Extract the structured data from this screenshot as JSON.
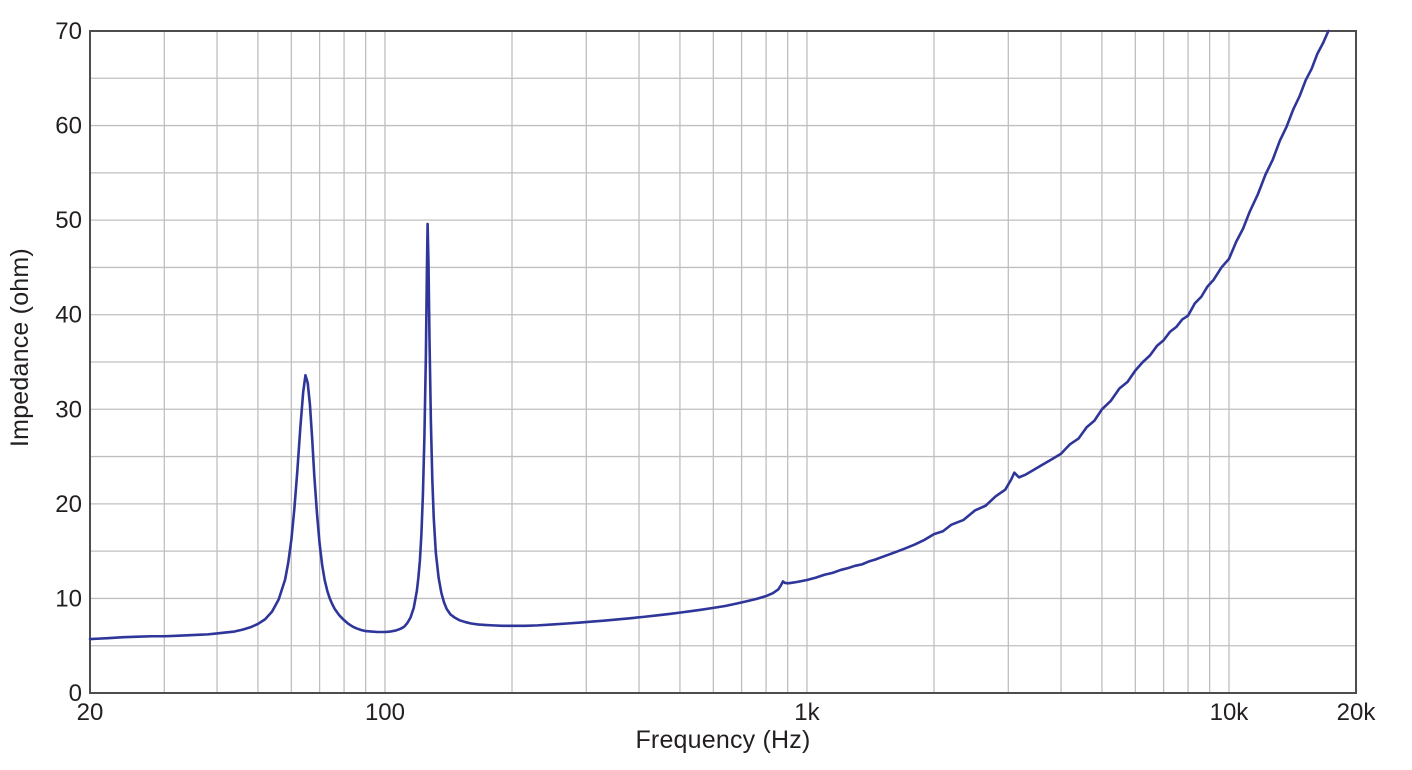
{
  "page": {
    "background": "#ffffff"
  },
  "chart_data": {
    "type": "line",
    "title": "",
    "xlabel": "Frequency (Hz)",
    "ylabel": "Impedance (ohm)",
    "x_scale": "log",
    "xlim": [
      20,
      20000
    ],
    "ylim": [
      0,
      70
    ],
    "grid": true,
    "legend_position": "none",
    "y_major_ticks": [
      0,
      10,
      20,
      30,
      40,
      50,
      60,
      70
    ],
    "y_gridline_step": 5,
    "x_tick_labels": [
      {
        "value": 20,
        "label": "20"
      },
      {
        "value": 100,
        "label": "100"
      },
      {
        "value": 1000,
        "label": "1k"
      },
      {
        "value": 10000,
        "label": "10k"
      },
      {
        "value": 20000,
        "label": "20k"
      }
    ],
    "colors": {
      "curve": "#2f3699",
      "gridline": "#bfbfbf",
      "border": "#4d4d4d",
      "text": "#231f20"
    },
    "series": [
      {
        "name": "Impedance",
        "color": "#2f3699",
        "points": [
          [
            20,
            5.7
          ],
          [
            21,
            5.75
          ],
          [
            22,
            5.8
          ],
          [
            23,
            5.85
          ],
          [
            24,
            5.9
          ],
          [
            26,
            5.95
          ],
          [
            28,
            6.0
          ],
          [
            30,
            6.0
          ],
          [
            32,
            6.05
          ],
          [
            34,
            6.1
          ],
          [
            36,
            6.15
          ],
          [
            38,
            6.2
          ],
          [
            40,
            6.3
          ],
          [
            42,
            6.4
          ],
          [
            44,
            6.5
          ],
          [
            46,
            6.7
          ],
          [
            48,
            6.95
          ],
          [
            50,
            7.3
          ],
          [
            52,
            7.8
          ],
          [
            54,
            8.6
          ],
          [
            56,
            9.9
          ],
          [
            58,
            12.0
          ],
          [
            59,
            13.8
          ],
          [
            60,
            16.2
          ],
          [
            61,
            19.5
          ],
          [
            62,
            23.5
          ],
          [
            63,
            28.0
          ],
          [
            64,
            31.8
          ],
          [
            64.8,
            33.6
          ],
          [
            65.6,
            32.8
          ],
          [
            66.4,
            30.5
          ],
          [
            67.2,
            27.0
          ],
          [
            68,
            23.0
          ],
          [
            69,
            19.0
          ],
          [
            70,
            15.8
          ],
          [
            71,
            13.5
          ],
          [
            72,
            11.9
          ],
          [
            73,
            10.8
          ],
          [
            74,
            10.0
          ],
          [
            75,
            9.4
          ],
          [
            76,
            8.9
          ],
          [
            78,
            8.2
          ],
          [
            80,
            7.7
          ],
          [
            82,
            7.3
          ],
          [
            84,
            7.0
          ],
          [
            86,
            6.8
          ],
          [
            88,
            6.65
          ],
          [
            90,
            6.55
          ],
          [
            93,
            6.5
          ],
          [
            96,
            6.45
          ],
          [
            100,
            6.45
          ],
          [
            103,
            6.5
          ],
          [
            106,
            6.6
          ],
          [
            109,
            6.8
          ],
          [
            111,
            7.0
          ],
          [
            113,
            7.4
          ],
          [
            115,
            8.0
          ],
          [
            117,
            9.0
          ],
          [
            119,
            10.8
          ],
          [
            120,
            12.2
          ],
          [
            121,
            14.0
          ],
          [
            122,
            16.8
          ],
          [
            123,
            21.0
          ],
          [
            124,
            27.0
          ],
          [
            125,
            35.5
          ],
          [
            125.7,
            44.5
          ],
          [
            126.2,
            49.6
          ],
          [
            126.8,
            45.5
          ],
          [
            127.5,
            37.5
          ],
          [
            128.5,
            28.5
          ],
          [
            129.5,
            22.5
          ],
          [
            130.5,
            18.5
          ],
          [
            132,
            14.8
          ],
          [
            134,
            12.2
          ],
          [
            136,
            10.6
          ],
          [
            138,
            9.6
          ],
          [
            140,
            8.9
          ],
          [
            143,
            8.3
          ],
          [
            146,
            8.0
          ],
          [
            150,
            7.7
          ],
          [
            155,
            7.5
          ],
          [
            160,
            7.35
          ],
          [
            166,
            7.25
          ],
          [
            172,
            7.2
          ],
          [
            180,
            7.15
          ],
          [
            190,
            7.1
          ],
          [
            200,
            7.1
          ],
          [
            215,
            7.1
          ],
          [
            230,
            7.15
          ],
          [
            250,
            7.25
          ],
          [
            270,
            7.35
          ],
          [
            290,
            7.45
          ],
          [
            310,
            7.55
          ],
          [
            330,
            7.65
          ],
          [
            350,
            7.75
          ],
          [
            380,
            7.9
          ],
          [
            410,
            8.05
          ],
          [
            440,
            8.2
          ],
          [
            470,
            8.35
          ],
          [
            500,
            8.5
          ],
          [
            530,
            8.65
          ],
          [
            560,
            8.8
          ],
          [
            600,
            9.0
          ],
          [
            640,
            9.2
          ],
          [
            680,
            9.45
          ],
          [
            720,
            9.7
          ],
          [
            760,
            9.95
          ],
          [
            800,
            10.25
          ],
          [
            830,
            10.55
          ],
          [
            855,
            10.95
          ],
          [
            868,
            11.4
          ],
          [
            877,
            11.8
          ],
          [
            886,
            11.65
          ],
          [
            900,
            11.6
          ],
          [
            920,
            11.65
          ],
          [
            950,
            11.75
          ],
          [
            1000,
            11.95
          ],
          [
            1050,
            12.2
          ],
          [
            1100,
            12.5
          ],
          [
            1150,
            12.7
          ],
          [
            1200,
            13.0
          ],
          [
            1250,
            13.2
          ],
          [
            1300,
            13.45
          ],
          [
            1350,
            13.6
          ],
          [
            1400,
            13.9
          ],
          [
            1450,
            14.1
          ],
          [
            1500,
            14.35
          ],
          [
            1600,
            14.8
          ],
          [
            1700,
            15.25
          ],
          [
            1800,
            15.7
          ],
          [
            1900,
            16.2
          ],
          [
            2000,
            16.8
          ],
          [
            2100,
            17.1
          ],
          [
            2200,
            17.8
          ],
          [
            2350,
            18.3
          ],
          [
            2500,
            19.3
          ],
          [
            2650,
            19.8
          ],
          [
            2800,
            20.8
          ],
          [
            2950,
            21.5
          ],
          [
            3050,
            22.6
          ],
          [
            3100,
            23.3
          ],
          [
            3180,
            22.8
          ],
          [
            3300,
            23.1
          ],
          [
            3450,
            23.6
          ],
          [
            3600,
            24.1
          ],
          [
            3800,
            24.7
          ],
          [
            4000,
            25.3
          ],
          [
            4200,
            26.3
          ],
          [
            4400,
            26.9
          ],
          [
            4600,
            28.1
          ],
          [
            4800,
            28.8
          ],
          [
            5000,
            30.0
          ],
          [
            5250,
            30.9
          ],
          [
            5500,
            32.2
          ],
          [
            5750,
            32.9
          ],
          [
            6000,
            34.1
          ],
          [
            6250,
            35.0
          ],
          [
            6500,
            35.7
          ],
          [
            6750,
            36.7
          ],
          [
            7000,
            37.3
          ],
          [
            7250,
            38.2
          ],
          [
            7500,
            38.7
          ],
          [
            7750,
            39.5
          ],
          [
            8000,
            39.9
          ],
          [
            8300,
            41.2
          ],
          [
            8600,
            41.9
          ],
          [
            8900,
            43.0
          ],
          [
            9200,
            43.7
          ],
          [
            9600,
            45.0
          ],
          [
            10000,
            45.9
          ],
          [
            10400,
            47.7
          ],
          [
            10800,
            49.1
          ],
          [
            11200,
            50.9
          ],
          [
            11700,
            52.7
          ],
          [
            12200,
            54.8
          ],
          [
            12700,
            56.4
          ],
          [
            13200,
            58.4
          ],
          [
            13700,
            59.9
          ],
          [
            14200,
            61.7
          ],
          [
            14700,
            63.1
          ],
          [
            15200,
            64.8
          ],
          [
            15700,
            66.0
          ],
          [
            16200,
            67.6
          ],
          [
            16700,
            68.7
          ],
          [
            17200,
            70.0
          ]
        ]
      }
    ]
  }
}
